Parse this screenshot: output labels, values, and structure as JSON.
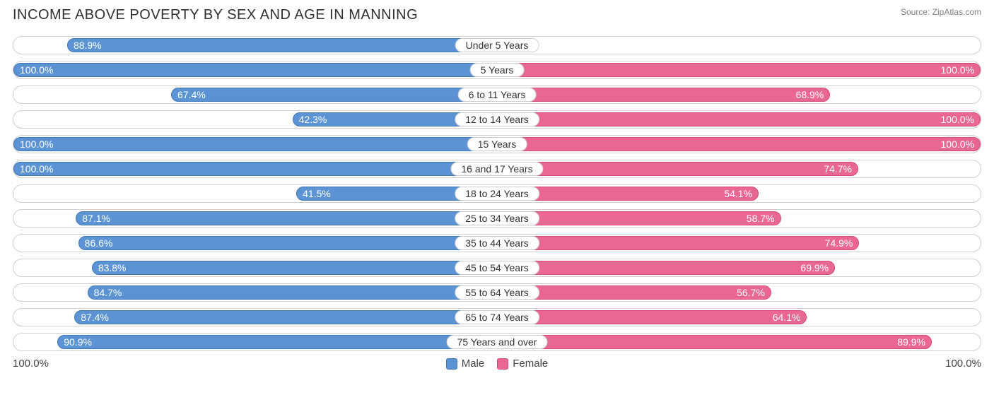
{
  "header": {
    "title": "INCOME ABOVE POVERTY BY SEX AND AGE IN MANNING",
    "source": "Source: ZipAtlas.com"
  },
  "chart": {
    "type": "diverging-bar",
    "male_color": "#5b93d4",
    "male_border": "#3f77b8",
    "female_color": "#eb6793",
    "female_border": "#d14a78",
    "track_border": "#cfcfcf",
    "background": "#ffffff",
    "label_fontsize": 14,
    "inside_threshold": 25,
    "rows": [
      {
        "category": "Under 5 Years",
        "male": 88.9,
        "female": 0.0
      },
      {
        "category": "5 Years",
        "male": 100.0,
        "female": 100.0
      },
      {
        "category": "6 to 11 Years",
        "male": 67.4,
        "female": 68.9
      },
      {
        "category": "12 to 14 Years",
        "male": 42.3,
        "female": 100.0
      },
      {
        "category": "15 Years",
        "male": 100.0,
        "female": 100.0
      },
      {
        "category": "16 and 17 Years",
        "male": 100.0,
        "female": 74.7
      },
      {
        "category": "18 to 24 Years",
        "male": 41.5,
        "female": 54.1
      },
      {
        "category": "25 to 34 Years",
        "male": 87.1,
        "female": 58.7
      },
      {
        "category": "35 to 44 Years",
        "male": 86.6,
        "female": 74.9
      },
      {
        "category": "45 to 54 Years",
        "male": 83.8,
        "female": 69.9
      },
      {
        "category": "55 to 64 Years",
        "male": 84.7,
        "female": 56.7
      },
      {
        "category": "65 to 74 Years",
        "male": 87.4,
        "female": 64.1
      },
      {
        "category": "75 Years and over",
        "male": 90.9,
        "female": 89.9
      }
    ]
  },
  "legend": {
    "male": "Male",
    "female": "Female"
  },
  "axis": {
    "left": "100.0%",
    "right": "100.0%"
  }
}
